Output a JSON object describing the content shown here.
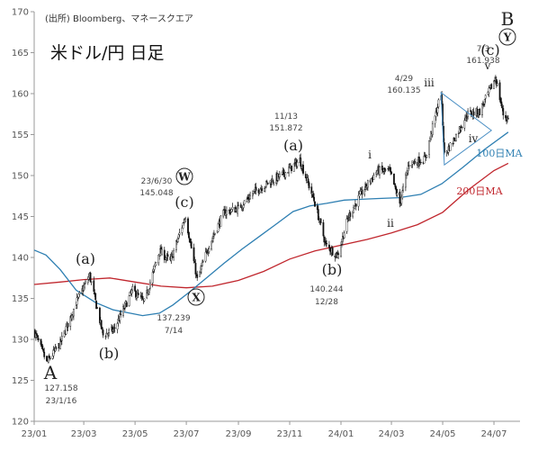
{
  "source_text": "(出所)  Bloomberg、マネースクエア",
  "chart_data": {
    "type": "candlestick",
    "title": "米ドル/円 日足",
    "ylim": [
      120,
      170
    ],
    "yticks": [
      120,
      125,
      130,
      135,
      140,
      145,
      150,
      155,
      160,
      165,
      170
    ],
    "xticks": [
      "23/01",
      "23/03",
      "23/05",
      "23/07",
      "23/09",
      "23/11",
      "24/01",
      "24/03",
      "24/05",
      "24/07"
    ],
    "grid": false,
    "price_path": [
      [
        "23/01/01",
        131.0
      ],
      [
        "23/01/16",
        127.158
      ],
      [
        "23/02/01",
        129.5
      ],
      [
        "23/02/20",
        134.5
      ],
      [
        "23/03/08",
        137.8
      ],
      [
        "23/03/24",
        130.5
      ],
      [
        "23/04/06",
        131.2
      ],
      [
        "23/04/28",
        136.0
      ],
      [
        "23/05/12",
        134.5
      ],
      [
        "23/05/30",
        140.8
      ],
      [
        "23/06/12",
        139.5
      ],
      [
        "23/06/30",
        145.048
      ],
      [
        "23/07/14",
        137.239
      ],
      [
        "23/07/28",
        141.5
      ],
      [
        "23/08/15",
        145.5
      ],
      [
        "23/09/01",
        146.0
      ],
      [
        "23/09/20",
        148.0
      ],
      [
        "23/10/05",
        149.0
      ],
      [
        "23/10/25",
        150.2
      ],
      [
        "23/11/13",
        151.872
      ],
      [
        "23/11/30",
        147.0
      ],
      [
        "23/12/14",
        141.5
      ],
      [
        "23/12/28",
        140.244
      ],
      [
        "24/01/10",
        145.0
      ],
      [
        "24/01/25",
        147.8
      ],
      [
        "24/02/13",
        150.6
      ],
      [
        "24/02/28",
        150.5
      ],
      [
        "24/03/11",
        146.6
      ],
      [
        "24/03/22",
        151.5
      ],
      [
        "24/04/10",
        152.0
      ],
      [
        "24/04/29",
        160.135
      ],
      [
        "24/05/03",
        152.5
      ],
      [
        "24/05/15",
        154.5
      ],
      [
        "24/05/30",
        157.5
      ],
      [
        "24/06/14",
        157.8
      ],
      [
        "24/07/03",
        161.938
      ],
      [
        "24/07/12",
        157.5
      ],
      [
        "24/07/18",
        156.8
      ]
    ],
    "ma_100_path": [
      [
        "23/01/01",
        140.9
      ],
      [
        "23/01/15",
        140.3
      ],
      [
        "23/02/01",
        138.5
      ],
      [
        "23/02/20",
        136.0
      ],
      [
        "23/03/15",
        134.5
      ],
      [
        "23/04/05",
        133.6
      ],
      [
        "23/04/25",
        133.2
      ],
      [
        "23/05/10",
        132.9
      ],
      [
        "23/05/30",
        133.2
      ],
      [
        "23/06/15",
        134.2
      ],
      [
        "23/07/05",
        135.8
      ],
      [
        "23/07/25",
        137.5
      ],
      [
        "23/08/15",
        139.3
      ],
      [
        "23/09/05",
        141.0
      ],
      [
        "23/09/25",
        142.5
      ],
      [
        "23/10/15",
        144.0
      ],
      [
        "23/11/05",
        145.6
      ],
      [
        "23/11/25",
        146.3
      ],
      [
        "23/12/15",
        146.6
      ],
      [
        "24/01/05",
        147.0
      ],
      [
        "24/01/25",
        147.1
      ],
      [
        "24/02/15",
        147.2
      ],
      [
        "24/03/10",
        147.3
      ],
      [
        "24/04/05",
        147.7
      ],
      [
        "24/04/30",
        149.0
      ],
      [
        "24/05/25",
        151.0
      ],
      [
        "24/06/20",
        153.2
      ],
      [
        "24/07/18",
        155.3
      ]
    ],
    "ma_200_path": [
      [
        "23/01/01",
        136.7
      ],
      [
        "23/02/01",
        137.0
      ],
      [
        "23/03/01",
        137.3
      ],
      [
        "23/04/01",
        137.5
      ],
      [
        "23/05/01",
        137.0
      ],
      [
        "23/06/01",
        136.5
      ],
      [
        "23/07/01",
        136.3
      ],
      [
        "23/08/01",
        136.5
      ],
      [
        "23/09/01",
        137.2
      ],
      [
        "23/10/01",
        138.3
      ],
      [
        "23/11/01",
        139.8
      ],
      [
        "23/12/01",
        140.8
      ],
      [
        "24/01/01",
        141.5
      ],
      [
        "24/02/01",
        142.2
      ],
      [
        "24/03/01",
        143.0
      ],
      [
        "24/04/01",
        144.0
      ],
      [
        "24/05/01",
        145.5
      ],
      [
        "24/06/01",
        148.3
      ],
      [
        "24/07/01",
        150.6
      ],
      [
        "24/07/18",
        151.5
      ]
    ],
    "ma_labels": [
      {
        "text": "100日MA",
        "color": "#2e7fb2"
      },
      {
        "text": "200日MA",
        "color": "#c0262d"
      }
    ],
    "triangle": [
      [
        "24/04/29",
        160.135
      ],
      [
        "24/05/03",
        151.3
      ],
      [
        "24/06/28",
        155.5
      ]
    ],
    "annotations": [
      {
        "label": "127.158",
        "date": "23/1/16"
      },
      {
        "label": "145.048",
        "date": "23/6/30"
      },
      {
        "label": "137.239",
        "date": "7/14"
      },
      {
        "label": "151.872",
        "date": "11/13"
      },
      {
        "label": "140.244",
        "date": "12/28"
      },
      {
        "label": "160.135",
        "date": "4/29"
      },
      {
        "label": "161.938",
        "date": "7/3"
      }
    ],
    "wave_labels": {
      "A": "A",
      "B": "B",
      "a1": "(a)",
      "b1": "(b)",
      "c1": "(c)",
      "w": "W",
      "x": "X",
      "a2": "(a)",
      "b2": "(b)",
      "c2": "(c)",
      "y": "Y",
      "i": "i",
      "ii": "ii",
      "iii": "iii",
      "iv": "iv",
      "v": "v"
    },
    "colors": {
      "candle": "#111111",
      "ma100": "#2e7fb2",
      "ma200": "#c0262d",
      "triangle": "#4a8fc4"
    }
  }
}
